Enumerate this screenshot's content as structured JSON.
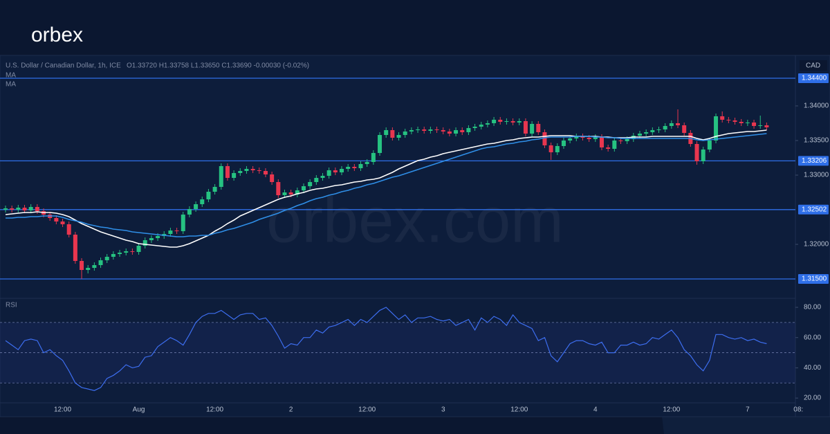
{
  "brand": "orbex",
  "watermark": "orbex.com",
  "chart_data": [
    {
      "type": "candlestick",
      "title": "U.S. Dollar / Canadian Dollar, 1h, ICE",
      "ohlc_label": "O1.33720  H1.33758  L1.33650  C1.33690  -0.00030 (-0.02%)",
      "currency": "CAD",
      "up_color": "#26c281",
      "down_color": "#e8364f",
      "categories": [
        null,
        null,
        null,
        null,
        null,
        null,
        null,
        null,
        null,
        "12:00",
        null,
        null,
        null,
        null,
        null,
        null,
        null,
        null,
        null,
        null,
        null,
        "Aug",
        null,
        null,
        null,
        null,
        null,
        null,
        null,
        null,
        null,
        null,
        null,
        "12:00",
        null,
        null,
        null,
        null,
        null,
        null,
        null,
        null,
        null,
        null,
        null,
        "2",
        null,
        null,
        null,
        null,
        null,
        null,
        null,
        null,
        null,
        null,
        null,
        "12:00",
        null,
        null,
        null,
        null,
        null,
        null,
        null,
        null,
        null,
        null,
        null,
        "3",
        null,
        null,
        null,
        null,
        null,
        null,
        null,
        null,
        null,
        null,
        null,
        "12:00",
        null,
        null,
        null,
        null,
        null,
        null,
        null,
        null,
        null,
        null,
        null,
        "4",
        null,
        null,
        null,
        null,
        null,
        null,
        null,
        null,
        null,
        null,
        null,
        "12:00",
        null,
        null,
        null,
        null,
        null,
        null,
        null,
        null,
        null,
        null,
        null,
        "7",
        null,
        null,
        null,
        null,
        null,
        null,
        null,
        "08:"
      ],
      "open": [
        1.325,
        1.3252,
        1.325,
        1.3253,
        1.3249,
        1.3254,
        1.3248,
        1.3243,
        1.3238,
        1.3233,
        1.3229,
        1.3214,
        1.3176,
        1.3163,
        1.3166,
        1.317,
        1.3177,
        1.3182,
        1.3186,
        1.3188,
        1.319,
        1.3189,
        1.3198,
        1.3206,
        1.3209,
        1.3212,
        1.3215,
        1.322,
        1.3219,
        1.3243,
        1.3251,
        1.3258,
        1.3265,
        1.3276,
        1.3283,
        1.3313,
        1.3296,
        1.3303,
        1.3306,
        1.3309,
        1.3307,
        1.3306,
        1.3301,
        1.329,
        1.3271,
        1.3275,
        1.3272,
        1.3278,
        1.3284,
        1.329,
        1.3296,
        1.3299,
        1.3307,
        1.3304,
        1.3309,
        1.3312,
        1.331,
        1.3316,
        1.3319,
        1.3332,
        1.3358,
        1.3365,
        1.3354,
        1.3358,
        1.3363,
        1.3365,
        1.3366,
        1.3364,
        1.3366,
        1.3365,
        1.3363,
        1.336,
        1.3365,
        1.3362,
        1.3368,
        1.337,
        1.3373,
        1.3375,
        1.338,
        1.3377,
        1.3378,
        1.3376,
        1.3378,
        1.336,
        1.3374,
        1.3362,
        1.3343,
        1.3333,
        1.3342,
        1.335,
        1.3353,
        1.3356,
        1.3354,
        1.3352,
        1.3355,
        1.334,
        1.3338,
        1.335,
        1.3349,
        1.3352,
        1.3357,
        1.336,
        1.3362,
        1.3365,
        1.3366,
        1.3371,
        1.3375,
        1.3372,
        1.3361,
        1.3345,
        1.332,
        1.3337,
        1.335,
        1.3385,
        1.338,
        1.3379,
        1.3377,
        1.3375,
        1.3376,
        1.3371,
        1.3372,
        null,
        null,
        null,
        null,
        null
      ],
      "high": [
        1.3256,
        1.3256,
        1.3257,
        1.3257,
        1.3258,
        1.3258,
        1.3252,
        1.3247,
        1.3242,
        1.3237,
        1.3233,
        1.3218,
        1.318,
        1.317,
        1.3174,
        1.3181,
        1.3186,
        1.319,
        1.3192,
        1.3194,
        1.3194,
        1.3202,
        1.321,
        1.3213,
        1.3216,
        1.3219,
        1.3224,
        1.3224,
        1.3247,
        1.3255,
        1.3262,
        1.3269,
        1.328,
        1.3287,
        1.3317,
        1.3317,
        1.3307,
        1.331,
        1.3313,
        1.3313,
        1.3311,
        1.331,
        1.3305,
        1.3294,
        1.3279,
        1.3279,
        1.3282,
        1.3288,
        1.3294,
        1.33,
        1.3303,
        1.3311,
        1.3311,
        1.3313,
        1.3316,
        1.3316,
        1.332,
        1.3323,
        1.3336,
        1.3362,
        1.3369,
        1.3369,
        1.3362,
        1.3367,
        1.3369,
        1.337,
        1.337,
        1.337,
        1.337,
        1.3369,
        1.3367,
        1.3369,
        1.3369,
        1.3372,
        1.3374,
        1.3377,
        1.3379,
        1.3384,
        1.3384,
        1.3382,
        1.3382,
        1.3382,
        1.3382,
        1.3378,
        1.3378,
        1.3366,
        1.3347,
        1.3346,
        1.3354,
        1.3357,
        1.336,
        1.336,
        1.3358,
        1.3359,
        1.3359,
        1.3344,
        1.3354,
        1.3354,
        1.3356,
        1.3361,
        1.3364,
        1.3366,
        1.3369,
        1.337,
        1.3375,
        1.3379,
        1.3395,
        1.3376,
        1.3365,
        1.3349,
        1.3341,
        1.3354,
        1.3389,
        1.3392,
        1.3384,
        1.3383,
        1.3381,
        1.338,
        1.338,
        1.3386,
        1.3376,
        null,
        null,
        null,
        null,
        null
      ],
      "low": [
        1.3246,
        1.3246,
        1.3246,
        1.3245,
        1.3245,
        1.3244,
        1.3239,
        1.3234,
        1.3229,
        1.3225,
        1.321,
        1.3172,
        1.315,
        1.3158,
        1.3162,
        1.3166,
        1.3173,
        1.3178,
        1.3182,
        1.3184,
        1.3185,
        1.3185,
        1.3194,
        1.3202,
        1.3205,
        1.3208,
        1.3211,
        1.3215,
        1.3215,
        1.3239,
        1.3247,
        1.3254,
        1.3261,
        1.3272,
        1.3279,
        1.3292,
        1.3292,
        1.3299,
        1.3302,
        1.3303,
        1.3302,
        1.3297,
        1.3286,
        1.3267,
        1.3267,
        1.3268,
        1.3268,
        1.3274,
        1.328,
        1.3286,
        1.3292,
        1.3295,
        1.33,
        1.33,
        1.3305,
        1.3306,
        1.3306,
        1.3312,
        1.3315,
        1.3328,
        1.3354,
        1.335,
        1.335,
        1.3354,
        1.3359,
        1.3361,
        1.336,
        1.336,
        1.3361,
        1.3359,
        1.3356,
        1.3356,
        1.3358,
        1.3358,
        1.3364,
        1.3366,
        1.3369,
        1.3371,
        1.3373,
        1.3373,
        1.3372,
        1.3372,
        1.3356,
        1.3356,
        1.3358,
        1.3339,
        1.3322,
        1.3329,
        1.3338,
        1.3346,
        1.3349,
        1.335,
        1.3348,
        1.3348,
        1.3336,
        1.3334,
        1.3334,
        1.3345,
        1.3345,
        1.3348,
        1.3353,
        1.3356,
        1.3358,
        1.3361,
        1.3362,
        1.3367,
        1.3368,
        1.3357,
        1.3341,
        1.3315,
        1.3316,
        1.3333,
        1.3346,
        1.3376,
        1.3375,
        1.3373,
        1.3371,
        1.3371,
        1.3367,
        1.3367,
        1.3365,
        null,
        null,
        null,
        null,
        null
      ],
      "close": [
        1.3252,
        1.325,
        1.3253,
        1.3249,
        1.3254,
        1.3248,
        1.3243,
        1.3238,
        1.3233,
        1.3229,
        1.3214,
        1.3176,
        1.3163,
        1.3166,
        1.317,
        1.3177,
        1.3182,
        1.3186,
        1.3188,
        1.319,
        1.3189,
        1.3198,
        1.3206,
        1.3209,
        1.3212,
        1.3215,
        1.322,
        1.3219,
        1.3243,
        1.3251,
        1.3258,
        1.3265,
        1.3276,
        1.3283,
        1.3313,
        1.3296,
        1.3303,
        1.3306,
        1.3309,
        1.3307,
        1.3306,
        1.3301,
        1.329,
        1.3271,
        1.3275,
        1.3272,
        1.3278,
        1.3284,
        1.329,
        1.3296,
        1.3299,
        1.3307,
        1.3304,
        1.3309,
        1.3312,
        1.331,
        1.3316,
        1.3319,
        1.3332,
        1.3358,
        1.3365,
        1.3354,
        1.3358,
        1.3363,
        1.3365,
        1.3366,
        1.3364,
        1.3366,
        1.3365,
        1.3363,
        1.336,
        1.3365,
        1.3362,
        1.3368,
        1.337,
        1.3373,
        1.3375,
        1.338,
        1.3377,
        1.3378,
        1.3376,
        1.3378,
        1.336,
        1.3374,
        1.3362,
        1.3343,
        1.3333,
        1.3342,
        1.335,
        1.3353,
        1.3356,
        1.3354,
        1.3352,
        1.3355,
        1.334,
        1.3338,
        1.335,
        1.3349,
        1.3352,
        1.3357,
        1.336,
        1.3362,
        1.3365,
        1.3366,
        1.3371,
        1.3375,
        1.3372,
        1.3361,
        1.3345,
        1.332,
        1.3337,
        1.335,
        1.3385,
        1.338,
        1.3379,
        1.3377,
        1.3375,
        1.3376,
        1.3371,
        1.3372,
        1.3369,
        null,
        null,
        null,
        null,
        null
      ],
      "series": [
        {
          "name": "MA",
          "color": "#ffffff",
          "values": [
            1.3243,
            1.3244,
            1.3245,
            1.3246,
            1.3246,
            1.3247,
            1.3246,
            1.3246,
            1.3245,
            1.3243,
            1.324,
            1.3235,
            1.323,
            1.3226,
            1.3222,
            1.3218,
            1.3215,
            1.3212,
            1.3209,
            1.3206,
            1.3204,
            1.3201,
            1.32,
            1.3199,
            1.3198,
            1.3197,
            1.3196,
            1.3196,
            1.3198,
            1.3201,
            1.3205,
            1.3209,
            1.3213,
            1.3219,
            1.3224,
            1.323,
            1.3235,
            1.3241,
            1.3245,
            1.3249,
            1.3253,
            1.3257,
            1.3261,
            1.3265,
            1.3268,
            1.327,
            1.3273,
            1.3275,
            1.3278,
            1.328,
            1.3281,
            1.3283,
            1.3285,
            1.3286,
            1.3288,
            1.329,
            1.3291,
            1.3293,
            1.3294,
            1.3296,
            1.33,
            1.3304,
            1.3309,
            1.3313,
            1.3317,
            1.3321,
            1.3323,
            1.3326,
            1.3328,
            1.3331,
            1.3333,
            1.3335,
            1.3337,
            1.3339,
            1.3341,
            1.3343,
            1.3345,
            1.3346,
            1.3348,
            1.335,
            1.3351,
            1.3353,
            1.3354,
            1.3355,
            1.3355,
            1.3356,
            1.3357,
            1.3357,
            1.3357,
            1.3357,
            1.3356,
            1.3356,
            1.3356,
            1.3356,
            1.3355,
            1.3355,
            1.3354,
            1.3354,
            1.3354,
            1.3355,
            1.3355,
            1.3355,
            1.3356,
            1.3356,
            1.3356,
            1.3356,
            1.3356,
            1.3356,
            1.3356,
            1.3353,
            1.3351,
            1.3353,
            1.3356,
            1.3358,
            1.336,
            1.3361,
            1.3362,
            1.3363,
            1.3363,
            1.3364,
            1.3365,
            null,
            null,
            null,
            null,
            null
          ]
        },
        {
          "name": "MA",
          "color": "#2f8fe8",
          "values": [
            1.3238,
            1.3238,
            1.3239,
            1.3239,
            1.324,
            1.324,
            1.3241,
            1.3241,
            1.3241,
            1.3239,
            1.3236,
            1.3234,
            1.3232,
            1.3229,
            1.3227,
            1.3225,
            1.3224,
            1.3222,
            1.3221,
            1.322,
            1.3218,
            1.3217,
            1.3216,
            1.3215,
            1.3214,
            1.3213,
            1.3212,
            1.3211,
            1.3211,
            1.3212,
            1.3212,
            1.3213,
            1.3213,
            1.3216,
            1.3218,
            1.3221,
            1.3223,
            1.3226,
            1.3229,
            1.3232,
            1.3236,
            1.3239,
            1.3242,
            1.3245,
            1.3249,
            1.3252,
            1.3256,
            1.3259,
            1.3263,
            1.3266,
            1.3268,
            1.3271,
            1.3273,
            1.3276,
            1.3278,
            1.3281,
            1.3283,
            1.3286,
            1.3288,
            1.3291,
            1.3294,
            1.3297,
            1.3299,
            1.3302,
            1.3305,
            1.3308,
            1.3311,
            1.3314,
            1.3317,
            1.332,
            1.3323,
            1.3326,
            1.3329,
            1.3332,
            1.3335,
            1.3338,
            1.334,
            1.3341,
            1.3343,
            1.3345,
            1.3346,
            1.3348,
            1.3349,
            1.3351,
            1.3352,
            1.3354,
            1.3355,
            1.3355,
            1.3355,
            1.3355,
            1.3356,
            1.3356,
            1.3356,
            1.3355,
            1.3355,
            1.3354,
            1.3354,
            1.3353,
            1.3353,
            1.3353,
            1.3353,
            1.3353,
            1.3353,
            1.3353,
            1.3353,
            1.3353,
            1.3353,
            1.3353,
            1.3353,
            1.3351,
            1.335,
            1.3351,
            1.3352,
            1.3353,
            1.3354,
            1.3355,
            1.3356,
            1.3357,
            1.3358,
            1.3359,
            1.336,
            null,
            null,
            null,
            null,
            null
          ]
        }
      ],
      "ylim": [
        1.3123,
        1.3471
      ],
      "yticks": [
        {
          "value": 1.34,
          "label": "1.34000"
        },
        {
          "value": 1.335,
          "label": "1.33500"
        },
        {
          "value": 1.33,
          "label": "1.33000"
        },
        {
          "value": 1.32,
          "label": "1.32000"
        }
      ],
      "hline_color": "#2f6fe8",
      "hlines": [
        {
          "value": 1.344,
          "label": "1.34400"
        },
        {
          "value": 1.33206,
          "label": "1.33206"
        },
        {
          "value": 1.32502,
          "label": "1.32502"
        },
        {
          "value": 1.315,
          "label": "1.31500"
        }
      ]
    },
    {
      "type": "line",
      "title": "RSI",
      "color": "#3d6ef0",
      "values": [
        58,
        55,
        52,
        58,
        59,
        58,
        50,
        52,
        48,
        45,
        38,
        30,
        27,
        26,
        25,
        27,
        33,
        35,
        38,
        42,
        40,
        41,
        47,
        48,
        54,
        57,
        60,
        58,
        55,
        62,
        70,
        74,
        76,
        76,
        78,
        75,
        72,
        75,
        76,
        76,
        72,
        73,
        68,
        61,
        53,
        56,
        55,
        60,
        60,
        65,
        63,
        67,
        68,
        70,
        72,
        68,
        72,
        70,
        74,
        78,
        80,
        76,
        72,
        75,
        70,
        73,
        73,
        74,
        72,
        71,
        72,
        68,
        70,
        72,
        65,
        73,
        70,
        74,
        72,
        68,
        75,
        70,
        68,
        66,
        58,
        60,
        48,
        44,
        50,
        56,
        58,
        58,
        56,
        55,
        57,
        50,
        50,
        55,
        55,
        57,
        55,
        56,
        60,
        59,
        62,
        65,
        60,
        52,
        48,
        42,
        38,
        45,
        62,
        62,
        60,
        59,
        60,
        58,
        59,
        57,
        56,
        null,
        null,
        null,
        null,
        null
      ],
      "levels": [
        70,
        50,
        30
      ],
      "ylim": [
        17.3,
        85.5
      ],
      "yticks": [
        {
          "value": 80,
          "label": "80.00"
        },
        {
          "value": 60,
          "label": "60.00"
        },
        {
          "value": 40,
          "label": "40.00"
        },
        {
          "value": 20,
          "label": "20.00"
        }
      ]
    }
  ]
}
